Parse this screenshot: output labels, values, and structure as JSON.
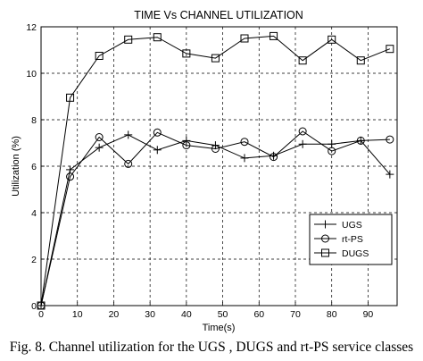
{
  "chart_data": {
    "type": "line",
    "title": "TIME Vs CHANNEL UTILIZATION",
    "xlabel": "Time(s)",
    "ylabel": "Utilization (%)",
    "xlim": [
      0,
      98
    ],
    "ylim": [
      0,
      12
    ],
    "xticks": [
      0,
      10,
      20,
      30,
      40,
      50,
      60,
      70,
      80,
      90
    ],
    "yticks": [
      0,
      2,
      4,
      6,
      8,
      10,
      12
    ],
    "grid": true,
    "grid_style": "dashed",
    "legend_position": "lower-right",
    "x": [
      0,
      8,
      16,
      24,
      32,
      40,
      48,
      56,
      64,
      72,
      80,
      88,
      96
    ],
    "series": [
      {
        "name": "UGS",
        "marker": "plus",
        "values": [
          0,
          5.85,
          6.8,
          7.35,
          6.7,
          7.1,
          6.9,
          6.35,
          6.45,
          6.95,
          6.95,
          7.1,
          5.65
        ]
      },
      {
        "name": "rt-PS",
        "marker": "circle",
        "values": [
          0,
          5.55,
          7.25,
          6.1,
          7.45,
          6.9,
          6.75,
          7.05,
          6.4,
          7.5,
          6.65,
          7.1,
          7.15
        ]
      },
      {
        "name": "DUGS",
        "marker": "square",
        "values": [
          0,
          8.95,
          10.75,
          11.45,
          11.55,
          10.85,
          10.65,
          11.5,
          11.6,
          10.55,
          11.45,
          10.55,
          11.05
        ]
      }
    ]
  },
  "caption": "Fig. 8.  Channel utilization for the UGS , DUGS  and rt-PS service classes"
}
